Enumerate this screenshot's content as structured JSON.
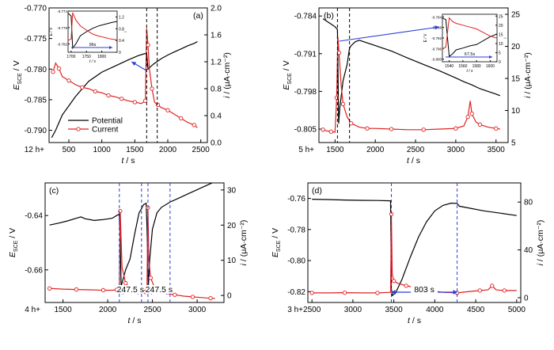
{
  "chart_data": [
    {
      "type": "line",
      "panel_label": "(a)",
      "xlabel": "t / s",
      "ylabel_left": "E_SCE / V",
      "ylabel_right": "i / (μA·cm⁻²)",
      "x_prefix": "12 h+",
      "xlim": [
        200,
        2600
      ],
      "ylim_left": [
        -0.792,
        -0.77
      ],
      "ylim_right": [
        0.0,
        2.0
      ],
      "xticks": [
        500,
        1000,
        1500,
        2000,
        2500
      ],
      "yticks_left": [
        -0.79,
        -0.785,
        -0.78,
        -0.775,
        -0.77
      ],
      "yticks_right": [
        0.0,
        0.4,
        0.8,
        1.2,
        1.6,
        2.0
      ],
      "ytick_labels_left": [
        "-0.790",
        "-0.785",
        "-0.780",
        "-0.775",
        "-0.770"
      ],
      "ytick_labels_right": [
        "0.0",
        "0.4",
        "0.8",
        "1.2",
        "1.6",
        "2.0"
      ],
      "vlines": [
        1680,
        1840
      ],
      "legend": {
        "placement": "lower-left",
        "entries": [
          "Potential",
          "Current"
        ]
      },
      "series": [
        {
          "name": "Potential",
          "axis": "left",
          "color": "#000000",
          "marker": "none",
          "x": [
            240,
            300,
            400,
            500,
            600,
            800,
            1000,
            1200,
            1400,
            1550,
            1640,
            1680,
            1700,
            1720,
            1780,
            1900,
            2000,
            2100,
            2200,
            2300,
            2400,
            2450
          ],
          "y": [
            -0.7912,
            -0.79,
            -0.7875,
            -0.786,
            -0.7845,
            -0.782,
            -0.7805,
            -0.7795,
            -0.7785,
            -0.7778,
            -0.7775,
            -0.7774,
            -0.78,
            -0.7798,
            -0.7792,
            -0.7783,
            -0.7777,
            -0.7772,
            -0.7767,
            -0.7762,
            -0.7758,
            -0.7755
          ]
        },
        {
          "name": "Current",
          "axis": "right",
          "color": "#e02020",
          "marker": "circle",
          "x": [
            260,
            300,
            350,
            400,
            500,
            600,
            700,
            800,
            900,
            1000,
            1100,
            1200,
            1300,
            1400,
            1500,
            1600,
            1660,
            1680,
            1700,
            1720,
            1760,
            1800,
            1850,
            1900,
            2000,
            2100,
            2200,
            2300,
            2400,
            2450
          ],
          "y": [
            1.05,
            1.18,
            1.1,
            0.98,
            0.92,
            0.86,
            0.82,
            0.8,
            0.76,
            0.74,
            0.7,
            0.68,
            0.65,
            0.62,
            0.6,
            0.58,
            0.62,
            1.7,
            1.45,
            1.1,
            0.8,
            0.6,
            0.56,
            0.52,
            0.48,
            0.42,
            0.36,
            0.3,
            0.26,
            0.22
          ]
        }
      ],
      "inset": {
        "xlim": [
          1690,
          1850
        ],
        "xticks": [
          1700,
          1750,
          1800
        ],
        "ylim_left": [
          -0.784,
          -0.774
        ],
        "yticks_left": [
          -0.782,
          -0.778,
          -0.774
        ],
        "ylim_right": [
          0,
          1.4
        ],
        "yticks_right": [
          0.0,
          0.4,
          0.8,
          1.2
        ],
        "xlabel": "t / s",
        "ylabel_left": "E / V",
        "ylabel_right": "i",
        "annotation": "96s",
        "series": [
          {
            "name": "Potential",
            "axis": "left",
            "color": "#000000",
            "x": [
              1690,
              1700,
              1705,
              1715,
              1730,
              1750,
              1770,
              1790,
              1810,
              1830,
              1850
            ],
            "y": [
              -0.7745,
              -0.7752,
              -0.783,
              -0.782,
              -0.78,
              -0.779,
              -0.7782,
              -0.7776,
              -0.7772,
              -0.7768,
              -0.7765
            ]
          },
          {
            "name": "Current",
            "axis": "right",
            "color": "#e02020",
            "x": [
              1690,
              1700,
              1705,
              1715,
              1730,
              1750,
              1770,
              1790,
              1810,
              1830,
              1850
            ],
            "y": [
              0.4,
              0.45,
              1.35,
              1.1,
              0.9,
              0.75,
              0.62,
              0.55,
              0.5,
              0.45,
              0.42
            ]
          }
        ]
      }
    },
    {
      "type": "line",
      "panel_label": "(b)",
      "xlabel": "t / s",
      "ylabel_left": "E_SCE / V",
      "ylabel_right": "i / (μA·cm⁻²)",
      "x_prefix": "5 h+",
      "xlim": [
        1300,
        3650
      ],
      "ylim_left": [
        -0.8075,
        -0.7825
      ],
      "ylim_right": [
        5,
        26
      ],
      "xticks": [
        1500,
        2000,
        2500,
        3000,
        3500
      ],
      "yticks_left": [
        -0.805,
        -0.798,
        -0.791,
        -0.784
      ],
      "yticks_right": [
        5,
        10,
        15,
        20,
        25
      ],
      "ytick_labels_left": [
        "-0.805",
        "-0.798",
        "-0.791",
        "-0.784"
      ],
      "ytick_labels_right": [
        "5",
        "10",
        "15",
        "20",
        "25"
      ],
      "vlines": [
        1530,
        1680
      ],
      "series": [
        {
          "name": "Potential",
          "axis": "left",
          "color": "#000000",
          "marker": "none",
          "x": [
            1350,
            1400,
            1450,
            1500,
            1530,
            1545,
            1560,
            1600,
            1650,
            1680,
            1700,
            1750,
            1800,
            1900,
            2000,
            2200,
            2400,
            2600,
            2800,
            3000,
            3100,
            3200,
            3300,
            3400,
            3500,
            3550
          ],
          "y": [
            -0.7845,
            -0.785,
            -0.7855,
            -0.786,
            -0.7865,
            -0.804,
            -0.801,
            -0.796,
            -0.793,
            -0.79,
            -0.7895,
            -0.7888,
            -0.7885,
            -0.789,
            -0.7895,
            -0.7905,
            -0.7918,
            -0.793,
            -0.7942,
            -0.7955,
            -0.7962,
            -0.7968,
            -0.7975,
            -0.798,
            -0.7985,
            -0.7988
          ]
        },
        {
          "name": "Current",
          "axis": "right",
          "color": "#e02020",
          "marker": "circle",
          "x": [
            1350,
            1400,
            1450,
            1500,
            1520,
            1535,
            1550,
            1575,
            1600,
            1650,
            1700,
            1800,
            1900,
            2000,
            2200,
            2400,
            2600,
            2800,
            3000,
            3100,
            3150,
            3180,
            3200,
            3250,
            3300,
            3400,
            3500,
            3550
          ],
          "y": [
            7.0,
            6.8,
            6.7,
            6.6,
            12.0,
            21.5,
            19.0,
            14.0,
            11.0,
            9.0,
            8.0,
            7.4,
            7.2,
            7.2,
            7.1,
            7.0,
            7.0,
            7.1,
            7.2,
            7.6,
            9.0,
            11.5,
            9.5,
            8.2,
            7.8,
            7.4,
            7.2,
            7.1
          ]
        }
      ],
      "inset": {
        "xlim": [
          1530,
          1610
        ],
        "xticks": [
          1540,
          1560,
          1580,
          1600
        ],
        "ylim_left": [
          -0.801,
          -0.783
        ],
        "yticks_left": [
          -0.8,
          -0.796,
          -0.792,
          -0.788,
          -0.784
        ],
        "ylim_right": [
          0,
          26
        ],
        "yticks_right": [
          0,
          5,
          10,
          15,
          20,
          25
        ],
        "xlabel": "t / s",
        "ylabel_left": "E / V",
        "ylabel_right": "i",
        "annotation": "67.5s",
        "series": [
          {
            "name": "Potential",
            "axis": "left",
            "color": "#000000",
            "x": [
              1530,
              1535,
              1540,
              1545,
              1550,
              1560,
              1570,
              1580,
              1590,
              1600,
              1610
            ],
            "y": [
              -0.7845,
              -0.785,
              -0.799,
              -0.798,
              -0.7965,
              -0.7958,
              -0.795,
              -0.7945,
              -0.793,
              -0.7915,
              -0.7905
            ]
          },
          {
            "name": "Current",
            "axis": "right",
            "color": "#e02020",
            "x": [
              1530,
              1535,
              1540,
              1545,
              1550,
              1560,
              1570,
              1580,
              1590,
              1600,
              1610
            ],
            "y": [
              7.0,
              8.0,
              24.0,
              22.0,
              21.0,
              20.0,
              19.0,
              18.0,
              16.0,
              14.0,
              13.0
            ]
          }
        ]
      }
    },
    {
      "type": "line",
      "panel_label": "(c)",
      "xlabel": "t / s",
      "ylabel_left": "E_SCE / V",
      "ylabel_right": "i / (μA·cm⁻²)",
      "x_prefix": "4 h+",
      "xlim": [
        1300,
        3300
      ],
      "ylim_left": [
        -0.672,
        -0.628
      ],
      "ylim_right": [
        -2,
        32
      ],
      "xticks": [
        1500,
        2000,
        2500,
        3000
      ],
      "yticks_left": [
        -0.66,
        -0.64
      ],
      "yticks_right": [
        0,
        10,
        20,
        30
      ],
      "ytick_labels_left": [
        "-0.66",
        "-0.64"
      ],
      "ytick_labels_right": [
        "0",
        "10",
        "20",
        "30"
      ],
      "vlines": [
        2130,
        2378,
        2450,
        2697
      ],
      "intervals": [
        {
          "from": 2130,
          "to": 2378,
          "label": "247.5 s"
        },
        {
          "from": 2450,
          "to": 2697,
          "label": "247.5 s"
        }
      ],
      "series": [
        {
          "name": "Potential",
          "axis": "left",
          "color": "#000000",
          "marker": "none",
          "x": [
            1350,
            1450,
            1550,
            1650,
            1700,
            1750,
            1850,
            1950,
            2050,
            2100,
            2130,
            2140,
            2150,
            2200,
            2250,
            2300,
            2350,
            2378,
            2400,
            2430,
            2440,
            2455,
            2470,
            2500,
            2550,
            2600,
            2700,
            2800,
            2900,
            3000,
            3100,
            3200
          ],
          "y": [
            -0.6435,
            -0.6428,
            -0.642,
            -0.641,
            -0.6405,
            -0.6412,
            -0.6418,
            -0.6415,
            -0.641,
            -0.64,
            -0.6395,
            -0.65,
            -0.666,
            -0.66,
            -0.656,
            -0.647,
            -0.639,
            -0.6375,
            -0.636,
            -0.6355,
            -0.645,
            -0.666,
            -0.656,
            -0.645,
            -0.639,
            -0.637,
            -0.635,
            -0.6335,
            -0.632,
            -0.6305,
            -0.629,
            -0.6275
          ]
        },
        {
          "name": "Current",
          "axis": "right",
          "color": "#e02020",
          "marker": "circle",
          "x": [
            1350,
            1500,
            1650,
            1800,
            1950,
            2050,
            2100,
            2130,
            2140,
            2160,
            2200,
            2250,
            2300,
            2378,
            2420,
            2440,
            2450,
            2460,
            2480,
            2520,
            2580,
            2650,
            2750,
            2850,
            2950,
            3050,
            3150,
            3200
          ],
          "y": [
            2.0,
            1.8,
            1.7,
            1.6,
            1.5,
            1.5,
            1.6,
            2.0,
            24.0,
            8.0,
            3.5,
            2.0,
            1.2,
            0.8,
            1.0,
            3.0,
            25.0,
            10.0,
            5.0,
            2.5,
            1.2,
            0.6,
            0.2,
            -0.2,
            -0.4,
            -0.6,
            -0.8,
            -0.8
          ]
        }
      ]
    },
    {
      "type": "line",
      "panel_label": "(d)",
      "xlabel": "t / s",
      "ylabel_left": "E_SCE / V",
      "ylabel_right": "i / (μA·cm⁻²)",
      "x_prefix": "3 h+",
      "xlim": [
        2450,
        5050
      ],
      "ylim_left": [
        -0.827,
        -0.75
      ],
      "ylim_right": [
        -4,
        96
      ],
      "xticks": [
        2500,
        3000,
        3500,
        4000,
        4500,
        5000
      ],
      "yticks_left": [
        -0.82,
        -0.8,
        -0.78,
        -0.76
      ],
      "yticks_right": [
        0,
        40,
        80
      ],
      "ytick_labels_left": [
        "-0.82",
        "-0.80",
        "-0.78",
        "-0.76"
      ],
      "ytick_labels_right": [
        "0",
        "40",
        "80"
      ],
      "vlines": [
        3470,
        4273
      ],
      "intervals": [
        {
          "from": 3470,
          "to": 4273,
          "label": "803 s"
        }
      ],
      "series": [
        {
          "name": "Potential",
          "axis": "left",
          "color": "#000000",
          "marker": "none",
          "x": [
            2500,
            2700,
            2900,
            3100,
            3300,
            3460,
            3470,
            3480,
            3520,
            3600,
            3700,
            3800,
            3900,
            4000,
            4100,
            4200,
            4273,
            4300,
            4400,
            4600,
            4800,
            5000
          ],
          "y": [
            -0.7605,
            -0.7607,
            -0.761,
            -0.7612,
            -0.7613,
            -0.7615,
            -0.818,
            -0.8225,
            -0.821,
            -0.812,
            -0.798,
            -0.785,
            -0.775,
            -0.768,
            -0.7645,
            -0.763,
            -0.7632,
            -0.765,
            -0.766,
            -0.768,
            -0.7695,
            -0.771
          ]
        },
        {
          "name": "Current",
          "axis": "right",
          "color": "#e02020",
          "marker": "circle",
          "x": [
            2500,
            2700,
            2900,
            3100,
            3300,
            3460,
            3470,
            3480,
            3500,
            3550,
            3650,
            3800,
            3950,
            4100,
            4273,
            4400,
            4550,
            4650,
            4700,
            4750,
            4850,
            5000
          ],
          "y": [
            4.0,
            4.0,
            4.2,
            4.0,
            4.0,
            4.5,
            70.0,
            20.0,
            14.0,
            12.0,
            10.0,
            8.0,
            6.0,
            4.5,
            4.0,
            5.0,
            6.0,
            6.5,
            10.0,
            6.5,
            6.0,
            6.0
          ]
        }
      ]
    }
  ]
}
